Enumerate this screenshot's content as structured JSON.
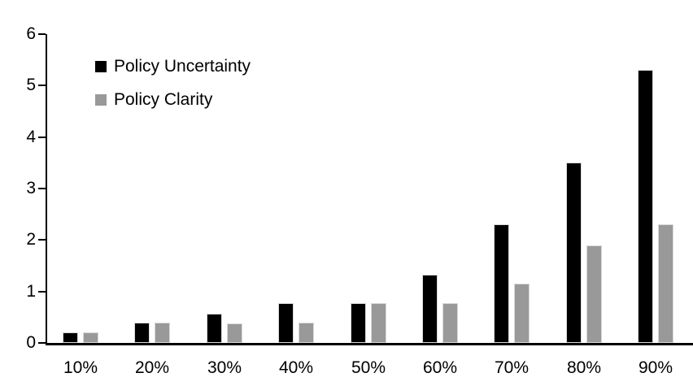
{
  "chart_data": {
    "type": "bar",
    "title": "",
    "xlabel": "",
    "ylabel": "",
    "categories": [
      "10%",
      "20%",
      "30%",
      "40%",
      "50%",
      "60%",
      "70%",
      "80%",
      "90%"
    ],
    "series": [
      {
        "name": "Policy Uncertainty",
        "color": "#000000",
        "values": [
          0.2,
          0.4,
          0.57,
          0.77,
          0.78,
          1.33,
          2.3,
          3.5,
          5.3
        ]
      },
      {
        "name": "Policy Clarity",
        "color": "#999999",
        "values": [
          0.2,
          0.39,
          0.38,
          0.39,
          0.77,
          0.77,
          1.15,
          1.9,
          2.3
        ]
      }
    ],
    "ylim": [
      0,
      6
    ],
    "yticks": [
      0,
      1,
      2,
      3,
      4,
      5,
      6
    ],
    "grid": false,
    "legend_position": "top-left",
    "axis_color": "#000000",
    "background_color": "#ffffff",
    "bar_edge_color": "#d9d9d9"
  }
}
